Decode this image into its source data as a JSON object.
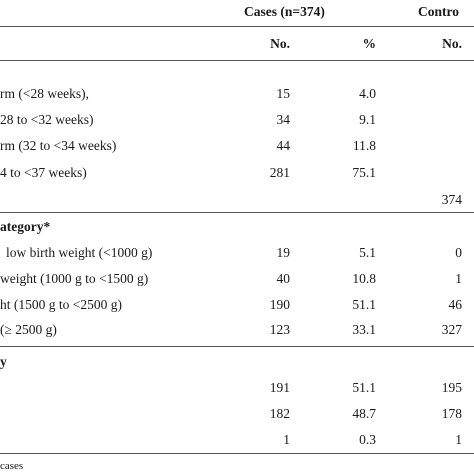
{
  "header": {
    "cases_group": "Cases (n=374)",
    "controls_group": "Contro",
    "col_no_cases": "No.",
    "col_pct_cases": "%",
    "col_no_controls": "No."
  },
  "rows": [
    {
      "label": "rm (<28 weeks),",
      "no": "15",
      "pct": "4.0",
      "ctrl": ""
    },
    {
      "label": "28 to <32 weeks)",
      "no": "34",
      "pct": "9.1",
      "ctrl": ""
    },
    {
      "label": "rm (32 to <34 weeks)",
      "no": "44",
      "pct": "11.8",
      "ctrl": ""
    },
    {
      "label": "4 to <37 weeks)",
      "no": "281",
      "pct": "75.1",
      "ctrl": ""
    },
    {
      "label": "",
      "no": "",
      "pct": "",
      "ctrl": "374"
    }
  ],
  "section2": {
    "title": "ategory*",
    "rows": [
      {
        "label": "low birth weight (<1000 g)",
        "no": "19",
        "pct": "5.1",
        "ctrl": "0"
      },
      {
        "label": "weight (1000 g to <1500 g)",
        "no": "40",
        "pct": "10.8",
        "ctrl": "1"
      },
      {
        "label": "ht (1500 g to <2500 g)",
        "no": "190",
        "pct": "51.1",
        "ctrl": "46"
      },
      {
        "label": "(≥ 2500 g)",
        "no": "123",
        "pct": "33.1",
        "ctrl": "327"
      }
    ]
  },
  "section3": {
    "title": "y",
    "rows": [
      {
        "label": "",
        "no": "191",
        "pct": "51.1",
        "ctrl": "195"
      },
      {
        "label": "",
        "no": "182",
        "pct": "48.7",
        "ctrl": "178"
      },
      {
        "label": "",
        "no": "1",
        "pct": "0.3",
        "ctrl": "1"
      }
    ]
  },
  "footnote": "cases"
}
